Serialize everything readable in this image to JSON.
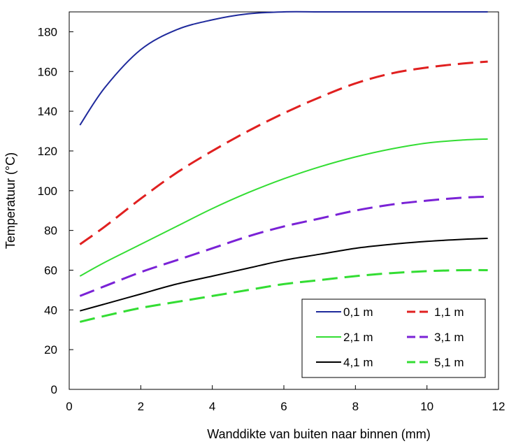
{
  "chart_data": {
    "type": "line",
    "title": "",
    "xlabel": "Wanddikte van buiten naar binnen (mm)",
    "ylabel": "Temperatuur  (°C)",
    "xlim": [
      0,
      12
    ],
    "ylim": [
      0,
      190
    ],
    "xticks": [
      "0",
      "2",
      "4",
      "6",
      "8",
      "10",
      "12"
    ],
    "yticks": [
      "0",
      "20",
      "40",
      "60",
      "80",
      "100",
      "120",
      "140",
      "160",
      "180"
    ],
    "grid": false,
    "legend_position": "bottom-right",
    "series": [
      {
        "name": "0,1 m",
        "color": "#1f2a9c",
        "dash": "solid",
        "x": [
          0.3,
          1,
          2,
          3,
          4,
          5,
          6,
          7,
          8,
          9,
          10,
          11,
          11.7
        ],
        "y": [
          133,
          152,
          171,
          181,
          186,
          189,
          190,
          190,
          190,
          190,
          190,
          190,
          190
        ]
      },
      {
        "name": "1,1 m",
        "color": "#e02020",
        "dash": "dashed",
        "x": [
          0.3,
          1,
          2,
          3,
          4,
          5,
          6,
          7,
          8,
          9,
          10,
          11,
          11.7
        ],
        "y": [
          73,
          82,
          96,
          109,
          120,
          130,
          139,
          147,
          154,
          159,
          162,
          164,
          165
        ]
      },
      {
        "name": "2,1 m",
        "color": "#33dd33",
        "dash": "solid",
        "x": [
          0.3,
          1,
          2,
          3,
          4,
          5,
          6,
          7,
          8,
          9,
          10,
          11,
          11.7
        ],
        "y": [
          57,
          64,
          73,
          82,
          91,
          99,
          106,
          112,
          117,
          121,
          124,
          125.5,
          126
        ]
      },
      {
        "name": "3,1 m",
        "color": "#7a22d6",
        "dash": "dashed",
        "x": [
          0.3,
          1,
          2,
          3,
          4,
          5,
          6,
          7,
          8,
          9,
          10,
          11,
          11.7
        ],
        "y": [
          47,
          52,
          59,
          65,
          71,
          77,
          82,
          86,
          90,
          93,
          95,
          96.5,
          97
        ]
      },
      {
        "name": "4,1 m",
        "color": "#000000",
        "dash": "solid",
        "x": [
          0.3,
          1,
          2,
          3,
          4,
          5,
          6,
          7,
          8,
          9,
          10,
          11,
          11.7
        ],
        "y": [
          39.5,
          43,
          48,
          53,
          57,
          61,
          65,
          68,
          71,
          73,
          74.5,
          75.5,
          76
        ]
      },
      {
        "name": "5,1 m",
        "color": "#33dd33",
        "dash": "dashed",
        "x": [
          0.3,
          1,
          2,
          3,
          4,
          5,
          6,
          7,
          8,
          9,
          10,
          11,
          11.7
        ],
        "y": [
          34,
          37,
          41,
          44,
          47,
          50,
          53,
          55,
          57,
          58.5,
          59.5,
          60,
          60
        ]
      }
    ]
  }
}
